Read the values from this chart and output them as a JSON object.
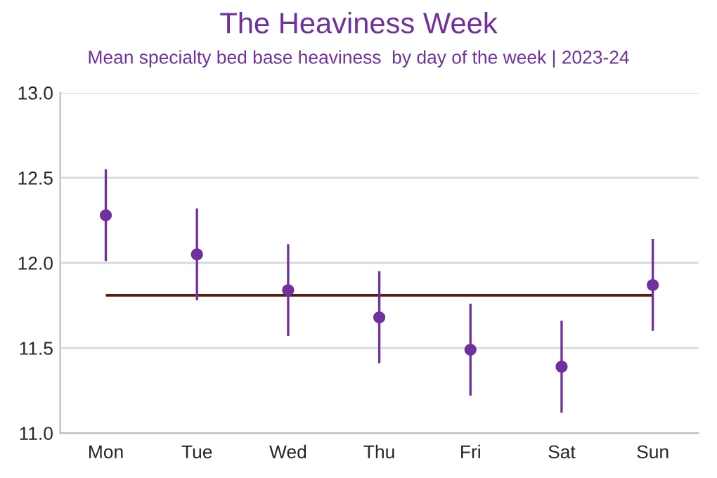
{
  "chart_data": {
    "type": "scatter",
    "title": "The Heaviness Week",
    "subtitle": "Mean specialty bed base heaviness  by day of the week | 2023-24",
    "categories": [
      "Mon",
      "Tue",
      "Wed",
      "Thu",
      "Fri",
      "Sat",
      "Sun"
    ],
    "series": [
      {
        "color": "#7030a0",
        "values": [
          12.28,
          12.05,
          11.84,
          11.68,
          11.49,
          11.39,
          11.87
        ],
        "errors": [
          0.27,
          0.27,
          0.27,
          0.27,
          0.27,
          0.27,
          0.27
        ]
      }
    ],
    "ref_lines": [
      {
        "axis": "y",
        "value": 11.81,
        "color": "#5a1e0a",
        "line_style": "solid"
      }
    ],
    "ylim": [
      11.0,
      13.0
    ],
    "yticks": [
      {
        "value": 11.0,
        "label": "11.0"
      },
      {
        "value": 11.5,
        "label": "11.5"
      },
      {
        "value": 12.0,
        "label": "12.0"
      },
      {
        "value": 12.5,
        "label": "12.5"
      },
      {
        "value": 13.0,
        "label": "13.0"
      }
    ],
    "grid": "y",
    "marker": "circle",
    "legend": false
  }
}
